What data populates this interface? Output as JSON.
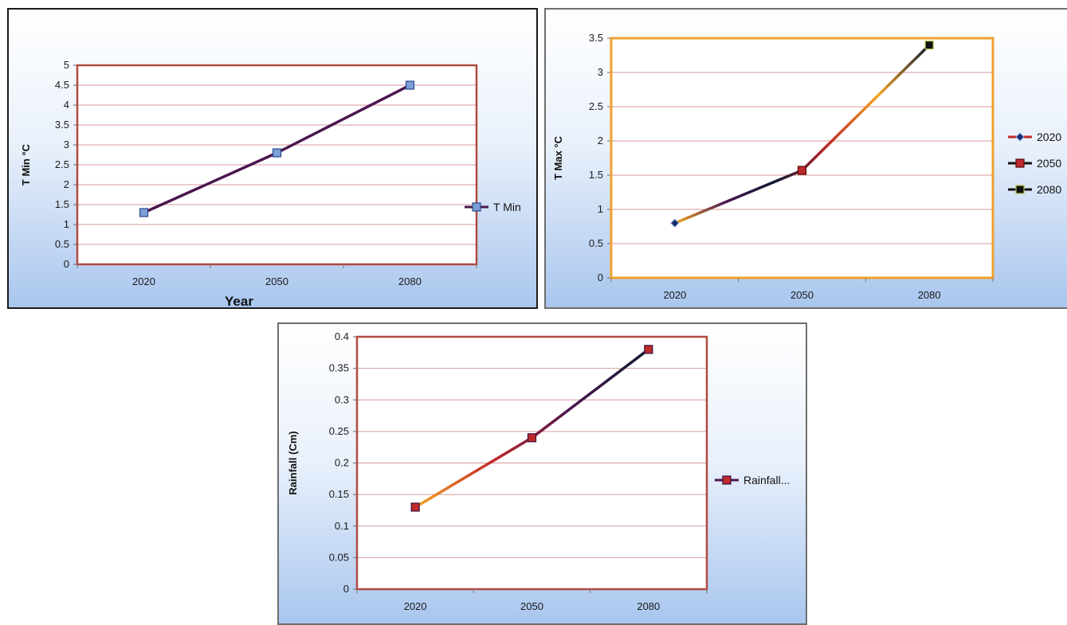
{
  "colors": {
    "grid": "#d79a9a",
    "plot_border_red": "#b14a40",
    "plot_border_orange": "#f0a030",
    "line_purple": "#4a1650",
    "marker_blue": "#7b9fd6",
    "marker_red": "#c0292b",
    "marker_navy": "#1c2a6e",
    "line_orange": "#f5a623",
    "line_dark": "#0f1930"
  },
  "chart_data": [
    {
      "type": "line",
      "ylabel": "T Min °C",
      "xlabel": "Year",
      "categories": [
        "2020",
        "2050",
        "2080"
      ],
      "ylim": [
        0,
        5
      ],
      "yticks": [
        "0",
        "0.5",
        "1",
        "1.5",
        "2",
        "2.5",
        "3",
        "3.5",
        "4",
        "4.5",
        "5"
      ],
      "grid": true,
      "legend_position": "right",
      "series": [
        {
          "name": "T Min",
          "values": [
            1.3,
            2.8,
            4.5
          ]
        }
      ]
    },
    {
      "type": "line",
      "ylabel": "T Max °C",
      "xlabel": "",
      "categories": [
        "2020",
        "2050",
        "2080"
      ],
      "ylim": [
        0,
        3.5
      ],
      "yticks": [
        "0",
        "0.5",
        "1",
        "1.5",
        "2",
        "2.5",
        "3",
        "3.5"
      ],
      "grid": true,
      "legend_position": "right",
      "series": [
        {
          "name": "2020",
          "values": [
            0.8,
            1.57,
            3.4
          ]
        }
      ],
      "legend_entries": [
        "2020",
        "2050",
        "2080"
      ]
    },
    {
      "type": "line",
      "ylabel": "Rainfall (Cm)",
      "xlabel": "",
      "categories": [
        "2020",
        "2050",
        "2080"
      ],
      "ylim": [
        0,
        0.4
      ],
      "yticks": [
        "0",
        "0.05",
        "0.1",
        "0.15",
        "0.2",
        "0.25",
        "0.3",
        "0.35",
        "0.4"
      ],
      "grid": true,
      "legend_position": "right",
      "series": [
        {
          "name": "Rainfall...",
          "values": [
            0.13,
            0.24,
            0.38
          ]
        }
      ]
    }
  ]
}
